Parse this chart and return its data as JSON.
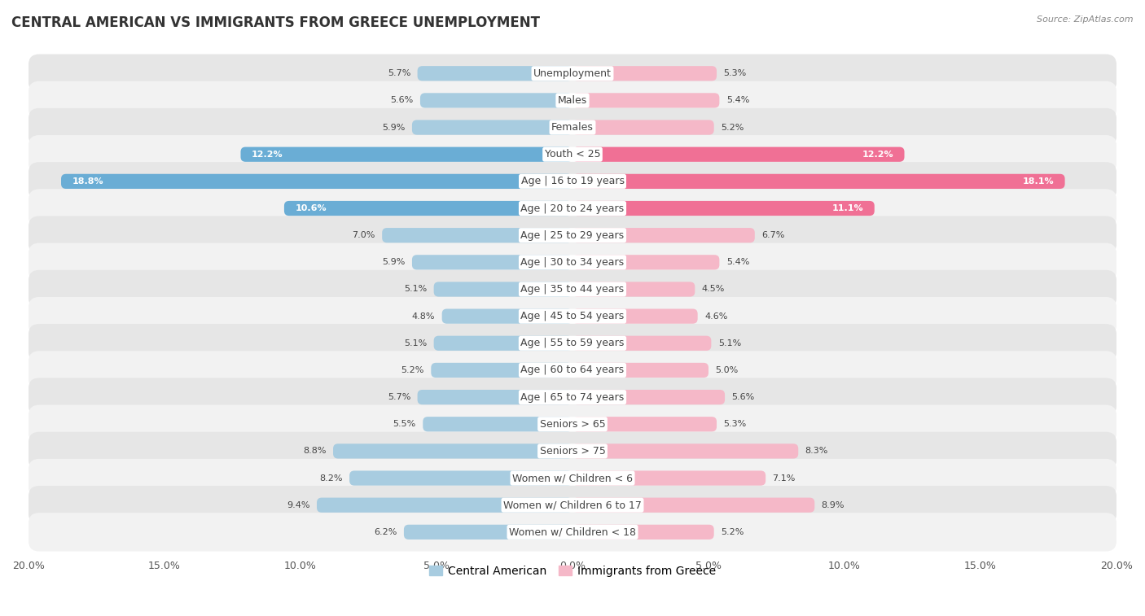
{
  "title": "CENTRAL AMERICAN VS IMMIGRANTS FROM GREECE UNEMPLOYMENT",
  "source": "Source: ZipAtlas.com",
  "categories": [
    "Unemployment",
    "Males",
    "Females",
    "Youth < 25",
    "Age | 16 to 19 years",
    "Age | 20 to 24 years",
    "Age | 25 to 29 years",
    "Age | 30 to 34 years",
    "Age | 35 to 44 years",
    "Age | 45 to 54 years",
    "Age | 55 to 59 years",
    "Age | 60 to 64 years",
    "Age | 65 to 74 years",
    "Seniors > 65",
    "Seniors > 75",
    "Women w/ Children < 6",
    "Women w/ Children 6 to 17",
    "Women w/ Children < 18"
  ],
  "central_american": [
    5.7,
    5.6,
    5.9,
    12.2,
    18.8,
    10.6,
    7.0,
    5.9,
    5.1,
    4.8,
    5.1,
    5.2,
    5.7,
    5.5,
    8.8,
    8.2,
    9.4,
    6.2
  ],
  "immigrants_greece": [
    5.3,
    5.4,
    5.2,
    12.2,
    18.1,
    11.1,
    6.7,
    5.4,
    4.5,
    4.6,
    5.1,
    5.0,
    5.6,
    5.3,
    8.3,
    7.1,
    8.9,
    5.2
  ],
  "color_central_light": "#a8cce0",
  "color_central_dark": "#6aadd5",
  "color_greece_light": "#f5b8c8",
  "color_greece_dark": "#f07095",
  "row_bg_light": "#f2f2f2",
  "row_bg_dark": "#e6e6e6",
  "background_color": "#ffffff",
  "axis_max": 20.0,
  "legend_label_central": "Central American",
  "legend_label_greece": "Immigrants from Greece",
  "title_fontsize": 12,
  "label_fontsize": 9,
  "value_fontsize": 8,
  "bar_height": 0.55,
  "highlight_threshold": 10.0
}
